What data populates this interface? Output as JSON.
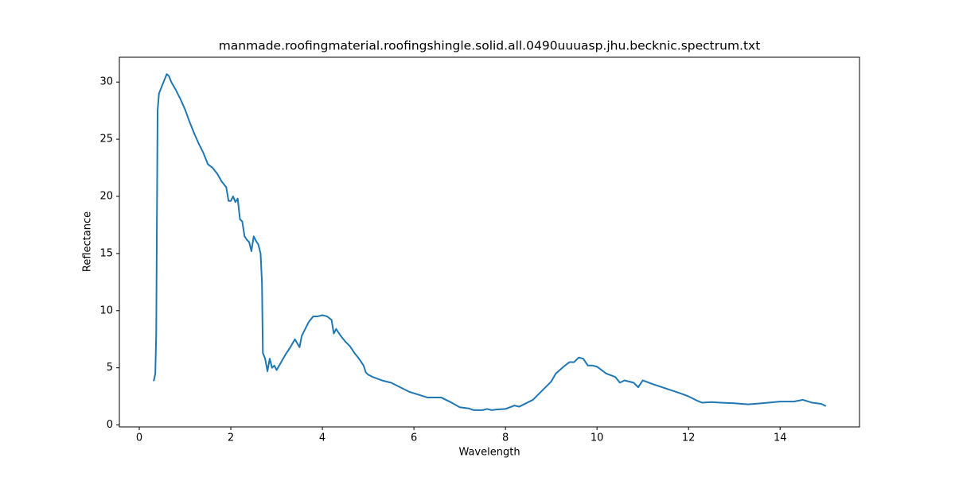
{
  "chart_data": {
    "type": "line",
    "title": "manmade.roofingmaterial.roofingshingle.solid.all.0490uuuasp.jhu.becknic.spectrum.txt",
    "x_label": "Wavelength",
    "y_label": "Reflectance",
    "xlim": [
      -0.435,
      15.735
    ],
    "ylim": [
      -0.17,
      32.17
    ],
    "xticks": [
      0,
      2,
      4,
      6,
      8,
      10,
      12,
      14
    ],
    "yticks": [
      0,
      5,
      10,
      15,
      20,
      25,
      30
    ],
    "series": [
      {
        "color": "#1f77b4",
        "x": [
          0.3,
          0.32,
          0.35,
          0.37,
          0.4,
          0.43,
          0.5,
          0.55,
          0.6,
          0.65,
          0.7,
          0.8,
          0.9,
          1.0,
          1.1,
          1.2,
          1.3,
          1.4,
          1.5,
          1.6,
          1.7,
          1.8,
          1.9,
          1.95,
          2.0,
          2.05,
          2.1,
          2.15,
          2.2,
          2.25,
          2.3,
          2.35,
          2.4,
          2.45,
          2.5,
          2.55,
          2.6,
          2.65,
          2.68,
          2.7,
          2.75,
          2.8,
          2.85,
          2.9,
          2.95,
          3.0,
          3.1,
          3.2,
          3.3,
          3.4,
          3.5,
          3.55,
          3.6,
          3.7,
          3.8,
          3.9,
          4.0,
          4.1,
          4.2,
          4.25,
          4.3,
          4.4,
          4.5,
          4.6,
          4.7,
          4.8,
          4.9,
          4.95,
          5.0,
          5.1,
          5.3,
          5.5,
          5.7,
          5.9,
          6.1,
          6.3,
          6.5,
          6.6,
          6.8,
          7.0,
          7.2,
          7.3,
          7.5,
          7.6,
          7.7,
          7.8,
          8.0,
          8.2,
          8.3,
          8.4,
          8.6,
          8.8,
          9.0,
          9.1,
          9.3,
          9.4,
          9.5,
          9.6,
          9.7,
          9.8,
          9.9,
          10.0,
          10.2,
          10.4,
          10.5,
          10.6,
          10.8,
          10.9,
          11.0,
          11.2,
          11.5,
          11.8,
          12.0,
          12.2,
          12.3,
          12.5,
          12.7,
          13.0,
          13.3,
          13.6,
          14.0,
          14.3,
          14.5,
          14.7,
          14.9,
          15.0
        ],
        "values": [
          3.9,
          3.9,
          4.5,
          8,
          27.5,
          29,
          29.7,
          30.2,
          30.7,
          30.5,
          30,
          29.3,
          28.5,
          27.6,
          26.5,
          25.5,
          24.6,
          23.8,
          22.8,
          22.5,
          22.0,
          21.3,
          20.8,
          19.6,
          19.6,
          20.0,
          19.5,
          19.8,
          18.0,
          17.8,
          16.5,
          16.2,
          16.0,
          15.2,
          16.5,
          16.1,
          15.8,
          15.0,
          12.5,
          6.3,
          5.8,
          4.7,
          5.8,
          5.0,
          5.2,
          4.8,
          5.5,
          6.2,
          6.8,
          7.5,
          6.8,
          7.8,
          8.2,
          9.0,
          9.5,
          9.5,
          9.6,
          9.5,
          9.2,
          8.0,
          8.4,
          7.8,
          7.3,
          6.9,
          6.3,
          5.8,
          5.2,
          4.6,
          4.4,
          4.2,
          3.9,
          3.7,
          3.3,
          2.9,
          2.65,
          2.4,
          2.4,
          2.4,
          2.0,
          1.55,
          1.45,
          1.3,
          1.3,
          1.4,
          1.3,
          1.35,
          1.4,
          1.7,
          1.6,
          1.8,
          2.2,
          3.0,
          3.8,
          4.5,
          5.2,
          5.5,
          5.5,
          5.9,
          5.8,
          5.2,
          5.2,
          5.1,
          4.5,
          4.2,
          3.7,
          3.9,
          3.7,
          3.3,
          3.9,
          3.6,
          3.2,
          2.8,
          2.5,
          2.1,
          1.95,
          2.0,
          1.95,
          1.9,
          1.8,
          1.9,
          2.05,
          2.05,
          2.2,
          1.95,
          1.85,
          1.65
        ]
      }
    ]
  }
}
